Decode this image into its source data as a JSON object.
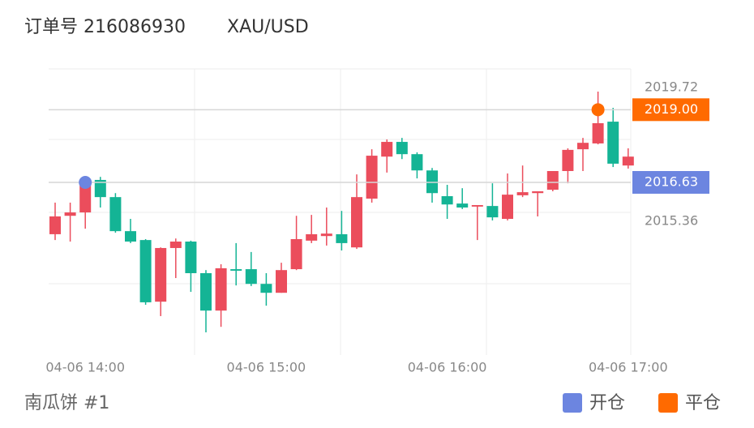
{
  "chart_data": {
    "type": "candlestick",
    "title": "订单号 216086930",
    "subtitle": "XAU/USD",
    "caption": "南瓜饼 #1",
    "x": [
      "04-06 13:50",
      "04-06 13:55",
      "04-06 14:00",
      "04-06 14:05",
      "04-06 14:10",
      "04-06 14:15",
      "04-06 14:20",
      "04-06 14:25",
      "04-06 14:30",
      "04-06 14:35",
      "04-06 14:40",
      "04-06 14:45",
      "04-06 14:50",
      "04-06 14:55",
      "04-06 15:00",
      "04-06 15:05",
      "04-06 15:10",
      "04-06 15:15",
      "04-06 15:20",
      "04-06 15:25",
      "04-06 15:30",
      "04-06 15:35",
      "04-06 15:40",
      "04-06 15:45",
      "04-06 15:50",
      "04-06 15:55",
      "04-06 16:00",
      "04-06 16:05",
      "04-06 16:10",
      "04-06 16:15",
      "04-06 16:20",
      "04-06 16:25",
      "04-06 16:30",
      "04-06 16:35",
      "04-06 16:40",
      "04-06 16:45",
      "04-06 16:50",
      "04-06 16:55",
      "04-06 17:00"
    ],
    "open": [
      2014.94,
      2015.54,
      2015.65,
      2016.71,
      2016.15,
      2015.04,
      2014.75,
      2012.74,
      2014.49,
      2014.7,
      2013.67,
      2012.45,
      2013.8,
      2013.8,
      2013.32,
      2013.03,
      2013.8,
      2014.73,
      2014.88,
      2014.94,
      2014.51,
      2016.1,
      2017.47,
      2017.95,
      2017.55,
      2017.02,
      2016.18,
      2015.94,
      2015.84,
      2015.86,
      2015.44,
      2016.21,
      2016.28,
      2016.39,
      2017.0,
      2017.71,
      2017.9,
      2018.61,
      2017.18
    ],
    "high": [
      2015.97,
      2015.97,
      2016.76,
      2016.81,
      2016.28,
      2015.44,
      2014.78,
      2014.51,
      2014.8,
      2014.73,
      2013.77,
      2013.96,
      2014.65,
      2014.36,
      2013.67,
      2014.01,
      2015.54,
      2015.57,
      2015.81,
      2015.7,
      2016.89,
      2017.71,
      2018.03,
      2018.08,
      2017.61,
      2017.1,
      2016.55,
      2016.44,
      2015.89,
      2016.6,
      2016.92,
      2017.18,
      2016.34,
      2017.0,
      2017.74,
      2018.08,
      2019.59,
      2019.06,
      2017.74
    ],
    "low": [
      2014.75,
      2014.7,
      2015.12,
      2015.81,
      2014.99,
      2014.65,
      2012.64,
      2012.27,
      2013.51,
      2013.06,
      2011.74,
      2011.92,
      2013.27,
      2013.25,
      2012.61,
      2013.03,
      2013.77,
      2014.65,
      2014.57,
      2014.41,
      2014.46,
      2015.97,
      2016.95,
      2017.39,
      2016.76,
      2015.97,
      2015.44,
      2015.76,
      2014.75,
      2015.39,
      2015.39,
      2016.15,
      2015.52,
      2016.34,
      2016.6,
      2017.0,
      2017.87,
      2017.13,
      2017.08
    ],
    "close": [
      2015.52,
      2015.65,
      2016.63,
      2016.15,
      2015.04,
      2014.7,
      2012.72,
      2014.49,
      2014.7,
      2013.67,
      2012.45,
      2013.83,
      2013.75,
      2013.32,
      2013.03,
      2013.77,
      2014.78,
      2014.94,
      2014.96,
      2014.65,
      2016.15,
      2017.5,
      2017.95,
      2017.55,
      2017.02,
      2016.28,
      2015.91,
      2015.81,
      2015.89,
      2015.49,
      2016.23,
      2016.31,
      2016.34,
      2017.0,
      2017.69,
      2017.92,
      2018.56,
      2017.24,
      2017.47
    ],
    "up_color": "#eb4d5c",
    "down_color": "#14b495",
    "ylim": [
      2011.0,
      2020.33
    ],
    "yticks": [
      2015.36,
      2019.72
    ],
    "xticks": [
      "04-06 14:00",
      "04-06 15:00",
      "04-06 16:00",
      "04-06 17:00"
    ],
    "markers": [
      {
        "name": "开仓",
        "x": "04-06 14:00",
        "value": 2016.63,
        "color": "#6c85e0"
      },
      {
        "name": "平仓",
        "x": "04-06 16:50",
        "value": 2019.0,
        "value_label": "2019.00",
        "color": "#ff6a00"
      }
    ]
  }
}
